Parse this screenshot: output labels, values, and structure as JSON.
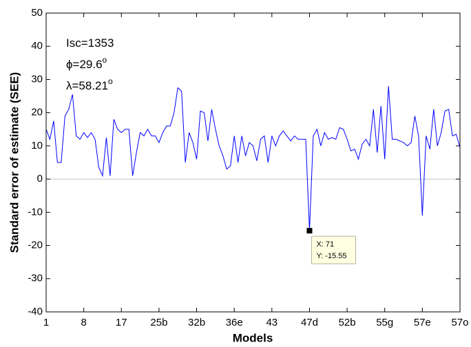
{
  "chart_data": {
    "type": "line",
    "y_label": "Standard error of estimate (SEE)",
    "x_label": "Models",
    "xlim": [
      1,
      111
    ],
    "ylim": [
      -40,
      50
    ],
    "yticks": [
      -40,
      -30,
      -20,
      -10,
      0,
      10,
      20,
      30,
      40,
      50
    ],
    "xticks": [
      {
        "value": 1,
        "label": "1"
      },
      {
        "value": 11,
        "label": "8"
      },
      {
        "value": 21,
        "label": "17"
      },
      {
        "value": 31,
        "label": "25b"
      },
      {
        "value": 41,
        "label": "32b"
      },
      {
        "value": 51,
        "label": "36e"
      },
      {
        "value": 61,
        "label": "43"
      },
      {
        "value": 71,
        "label": "47d"
      },
      {
        "value": 81,
        "label": "52b"
      },
      {
        "value": 91,
        "label": "55g"
      },
      {
        "value": 101,
        "label": "57e"
      },
      {
        "value": 111,
        "label": "57o"
      }
    ],
    "reference_line": 0,
    "annotations": [
      {
        "text": "Isc=1353"
      },
      {
        "text": "ϕ=29.6",
        "sup": "o"
      },
      {
        "text": "λ=58.21",
        "sup": "o"
      }
    ],
    "datatip": {
      "x": 71,
      "y": -15.55,
      "labels": [
        "X: 71",
        "Y: -15.55"
      ]
    },
    "color": "#0000ff",
    "x": [
      1,
      2,
      3,
      4,
      5,
      6,
      7,
      8,
      9,
      10,
      11,
      12,
      13,
      14,
      15,
      16,
      17,
      18,
      19,
      20,
      21,
      22,
      23,
      24,
      25,
      26,
      27,
      28,
      29,
      30,
      31,
      32,
      33,
      34,
      35,
      36,
      37,
      38,
      39,
      40,
      41,
      42,
      43,
      44,
      45,
      46,
      47,
      48,
      49,
      50,
      51,
      52,
      53,
      54,
      55,
      56,
      57,
      58,
      59,
      60,
      61,
      62,
      63,
      64,
      65,
      66,
      67,
      68,
      69,
      70,
      71,
      72,
      73,
      74,
      75,
      76,
      77,
      78,
      79,
      80,
      81,
      82,
      83,
      84,
      85,
      86,
      87,
      88,
      89,
      90,
      91,
      92,
      93,
      94,
      95,
      96,
      97,
      98,
      99,
      100,
      101,
      102,
      103,
      104,
      105,
      106,
      107,
      108,
      109,
      110,
      111
    ],
    "values": [
      15,
      12,
      17.5,
      5,
      5,
      19,
      21,
      25.5,
      13,
      12,
      14,
      12.5,
      14,
      12,
      3.5,
      1,
      12.5,
      1,
      18,
      15,
      14,
      15,
      15,
      1,
      8,
      14,
      13,
      15,
      13,
      13,
      11,
      14,
      16,
      16,
      20,
      27.5,
      26.5,
      5,
      14,
      11,
      6,
      20.5,
      20,
      11.5,
      21,
      15,
      10,
      7,
      3,
      4,
      13,
      5,
      13,
      7,
      11,
      10,
      5.5,
      12,
      13,
      5,
      13,
      10,
      13,
      14.5,
      13,
      11.5,
      13,
      12,
      12,
      12,
      -15.55,
      13,
      15,
      10,
      14,
      12,
      12.5,
      12,
      15.5,
      15,
      12,
      8.5,
      9,
      6,
      10.5,
      12,
      10,
      21,
      8,
      22,
      6,
      28,
      12,
      12,
      11.5,
      11,
      10,
      11,
      19,
      13,
      -11,
      13,
      9,
      21,
      10,
      14,
      20.5,
      21,
      13,
      13.5,
      9.5
    ]
  }
}
